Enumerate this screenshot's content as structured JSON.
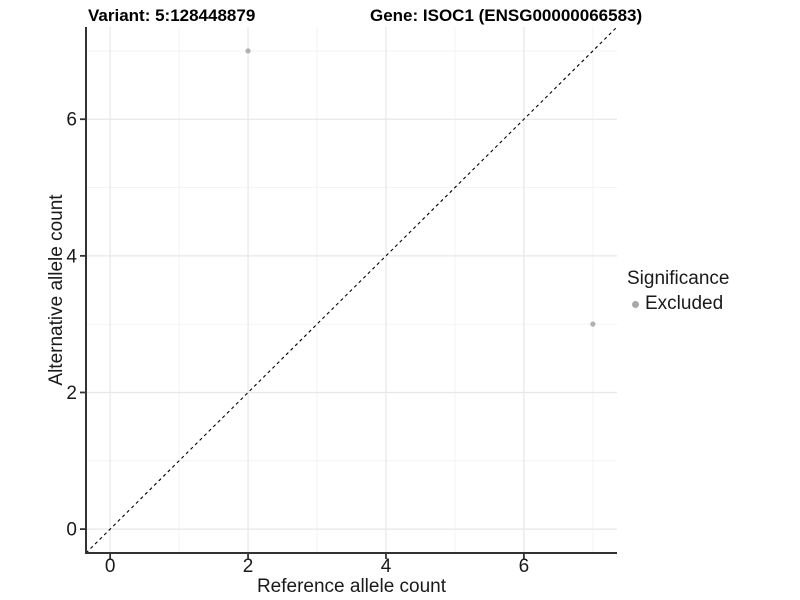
{
  "chart_data": {
    "type": "scatter",
    "titles": {
      "left": "Variant: 5:128448879",
      "right": "Gene: ISOC1 (ENSG00000066583)"
    },
    "xlabel": "Reference allele count",
    "ylabel": "Alternative allele count",
    "xlim": [
      -0.35,
      7.35
    ],
    "ylim": [
      -0.35,
      7.35
    ],
    "xticks": [
      0,
      2,
      4,
      6
    ],
    "yticks": [
      0,
      2,
      4,
      6
    ],
    "xticks_minor": [
      1,
      3,
      5,
      7
    ],
    "yticks_minor": [
      1,
      3,
      5,
      7
    ],
    "grid": "major+minor",
    "reference_line": {
      "kind": "identity",
      "style": "dashed",
      "color": "#000000"
    },
    "series": [
      {
        "name": "Excluded",
        "color": "#b1b1b1",
        "points": [
          {
            "x": 2,
            "y": 7
          },
          {
            "x": 7,
            "y": 3
          }
        ]
      }
    ],
    "legend": {
      "title": "Significance",
      "position": "right",
      "items": [
        {
          "label": "Excluded",
          "color": "#a8a8a8"
        }
      ]
    },
    "colors": {
      "axis": "#333333",
      "tick_label": "#1a1a1a",
      "grid_major": "#e7e7e7",
      "grid_minor": "#f2f2f2",
      "background": "#ffffff"
    }
  }
}
